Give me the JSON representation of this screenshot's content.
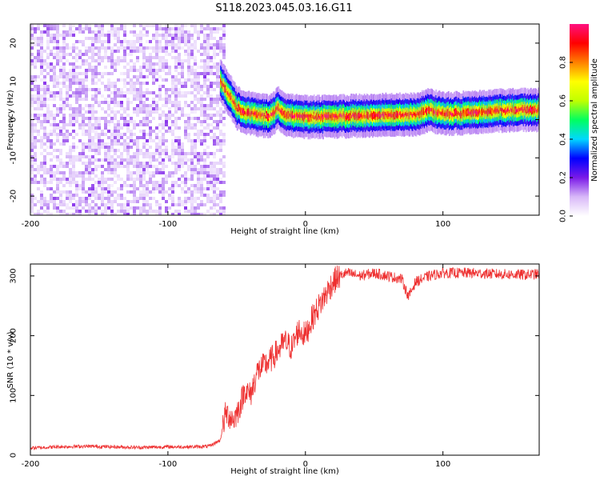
{
  "title": "S118.2023.045.03.16.G11",
  "chart_data": [
    {
      "type": "heatmap",
      "xlabel": "Height of straight line (km)",
      "ylabel": "Frequency (Hz)",
      "xlim": [
        -200,
        170
      ],
      "ylim": [
        -25,
        25
      ],
      "xticks": [
        -200,
        -100,
        0,
        100
      ],
      "yticks": [
        -20,
        -10,
        0,
        10,
        20
      ],
      "noise_region": {
        "x_from": -200,
        "x_to": -60,
        "y_from": -25,
        "y_to": 25,
        "amplitude_range": [
          0.0,
          0.25
        ]
      },
      "ridge": {
        "x": [
          -62,
          -55,
          -50,
          -45,
          -40,
          -30,
          -25,
          -20,
          -15,
          -10,
          0,
          10,
          20,
          40,
          60,
          80,
          90,
          100,
          120,
          140,
          160,
          170
        ],
        "y": [
          10,
          6,
          3,
          2,
          1.5,
          1,
          1,
          3,
          1,
          1,
          0.7,
          0.7,
          0.8,
          1,
          1.2,
          1.4,
          2.5,
          1.5,
          1.8,
          2.3,
          2.5,
          2.5
        ]
      },
      "colorbar": {
        "label": "Normalized spectral amplitude",
        "ticks": [
          0.0,
          0.2,
          0.4,
          0.6,
          0.8
        ],
        "range": [
          0,
          1
        ],
        "colors": [
          "#ffffff",
          "#d8b8f8",
          "#7a1ae8",
          "#0000ff",
          "#00d8ff",
          "#00ff60",
          "#c0ff00",
          "#ffff00",
          "#ff8000",
          "#ff0000",
          "#ff1080"
        ]
      }
    },
    {
      "type": "line",
      "xlabel": "Height of straight line (km)",
      "ylabel": "SNR (10 * v/v)",
      "xlim": [
        -200,
        170
      ],
      "ylim": [
        0,
        320
      ],
      "xticks": [
        -200,
        -100,
        0,
        100
      ],
      "yticks": [
        0,
        100,
        200,
        300
      ],
      "color": "#ee3030",
      "x": [
        -200,
        -180,
        -160,
        -140,
        -120,
        -100,
        -80,
        -70,
        -62,
        -58,
        -52,
        -48,
        -44,
        -40,
        -35,
        -30,
        -25,
        -20,
        -15,
        -10,
        -5,
        0,
        5,
        10,
        15,
        20,
        25,
        30,
        40,
        50,
        60,
        70,
        75,
        80,
        90,
        100,
        120,
        140,
        160,
        170
      ],
      "y": [
        12,
        14,
        15,
        14,
        13,
        14,
        14,
        15,
        25,
        70,
        60,
        80,
        110,
        100,
        140,
        150,
        160,
        175,
        190,
        180,
        210,
        200,
        230,
        250,
        270,
        290,
        300,
        305,
        300,
        305,
        300,
        295,
        265,
        290,
        300,
        305,
        305,
        303,
        302,
        303
      ]
    }
  ]
}
